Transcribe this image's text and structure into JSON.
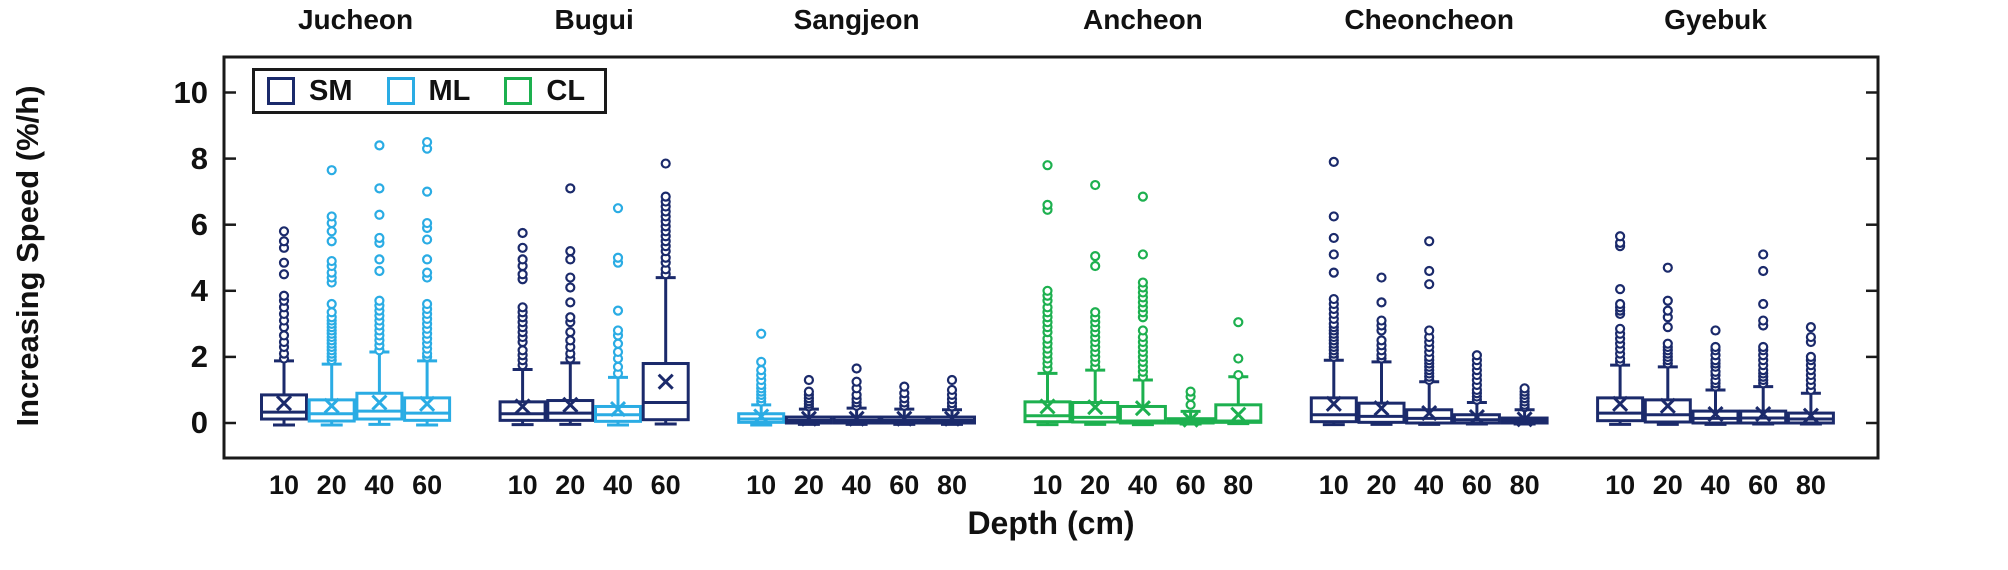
{
  "figure": {
    "ylabel": "Increasing Speed (%/h)",
    "xlabel": "Depth (cm)"
  },
  "legend": {
    "items": [
      {
        "label": "SM",
        "color": "#1b2a6b"
      },
      {
        "label": "ML",
        "color": "#2aace4"
      },
      {
        "label": "CL",
        "color": "#1db04f"
      }
    ]
  },
  "chart_data": {
    "type": "box",
    "ylabel": "Increasing Speed (%/h)",
    "xlabel": "Depth (cm)",
    "ylim": [
      -1,
      11
    ],
    "yticks": [
      0,
      2,
      4,
      6,
      8,
      10
    ],
    "grid": false,
    "legend_position": "top-left-inside",
    "mean_marker": "x",
    "outlier_marker": "open-circle",
    "soil_class_colors": {
      "SM": "#1b2a6b",
      "ML": "#2aace4",
      "CL": "#1db04f"
    },
    "groups": [
      {
        "name": "Jucheon",
        "boxes": [
          {
            "depth": "10",
            "class": "SM",
            "whisker_low": -0.06,
            "q1": 0.12,
            "median": 0.33,
            "q3": 0.85,
            "whisker_high": 1.88,
            "mean": 0.6,
            "outliers": [
              1.95,
              2.1,
              2.3,
              2.45,
              2.65,
              2.9,
              3.1,
              3.3,
              3.5,
              3.7,
              3.85,
              4.5,
              4.85,
              5.3,
              5.5,
              5.8
            ]
          },
          {
            "depth": "20",
            "class": "ML",
            "whisker_low": -0.06,
            "q1": 0.06,
            "median": 0.28,
            "q3": 0.7,
            "whisker_high": 1.78,
            "mean": 0.52,
            "outliers": [
              1.9,
              2.0,
              2.1,
              2.2,
              2.3,
              2.4,
              2.5,
              2.6,
              2.7,
              2.8,
              2.9,
              3.0,
              3.1,
              3.2,
              3.35,
              3.6,
              4.25,
              4.4,
              4.55,
              4.75,
              4.9,
              5.5,
              5.8,
              6.05,
              6.25,
              7.65
            ]
          },
          {
            "depth": "40",
            "class": "ML",
            "whisker_low": -0.04,
            "q1": 0.12,
            "median": 0.36,
            "q3": 0.9,
            "whisker_high": 2.15,
            "mean": 0.62,
            "outliers": [
              2.2,
              2.35,
              2.5,
              2.65,
              2.8,
              2.95,
              3.1,
              3.25,
              3.4,
              3.55,
              3.7,
              4.6,
              4.95,
              5.45,
              5.6,
              6.3,
              7.1,
              8.4
            ]
          },
          {
            "depth": "60",
            "class": "ML",
            "whisker_low": -0.06,
            "q1": 0.08,
            "median": 0.3,
            "q3": 0.76,
            "whisker_high": 1.88,
            "mean": 0.58,
            "outliers": [
              2.0,
              2.1,
              2.25,
              2.4,
              2.55,
              2.7,
              2.85,
              3.0,
              3.15,
              3.3,
              3.45,
              3.6,
              4.4,
              4.55,
              4.95,
              5.55,
              5.9,
              6.05,
              7.0,
              8.3,
              8.5
            ]
          }
        ]
      },
      {
        "name": "Bugui",
        "boxes": [
          {
            "depth": "10",
            "class": "SM",
            "whisker_low": -0.05,
            "q1": 0.08,
            "median": 0.28,
            "q3": 0.64,
            "whisker_high": 1.62,
            "mean": 0.5,
            "outliers": [
              1.75,
              1.9,
              2.05,
              2.2,
              2.45,
              2.6,
              2.75,
              2.9,
              3.05,
              3.2,
              3.35,
              3.5,
              4.35,
              4.5,
              4.75,
              4.95,
              5.3,
              5.75
            ]
          },
          {
            "depth": "20",
            "class": "SM",
            "whisker_low": -0.04,
            "q1": 0.08,
            "median": 0.3,
            "q3": 0.68,
            "whisker_high": 1.82,
            "mean": 0.55,
            "outliers": [
              1.95,
              2.1,
              2.3,
              2.5,
              2.75,
              3.05,
              3.2,
              3.65,
              4.1,
              4.4,
              4.95,
              5.2,
              7.1
            ]
          },
          {
            "depth": "40",
            "class": "ML",
            "whisker_low": -0.06,
            "q1": 0.05,
            "median": 0.25,
            "q3": 0.5,
            "whisker_high": 1.38,
            "mean": 0.42,
            "outliers": [
              1.5,
              1.7,
              1.95,
              2.15,
              2.4,
              2.65,
              2.8,
              3.4,
              4.85,
              5.0,
              6.5
            ]
          },
          {
            "depth": "60",
            "class": "SM",
            "whisker_low": -0.03,
            "q1": 0.1,
            "median": 0.62,
            "q3": 1.8,
            "whisker_high": 4.4,
            "mean": 1.25,
            "outliers": [
              4.5,
              4.65,
              4.85,
              5.0,
              5.2,
              5.35,
              5.5,
              5.65,
              5.8,
              5.95,
              6.1,
              6.25,
              6.4,
              6.55,
              6.7,
              6.85,
              7.85
            ]
          }
        ]
      },
      {
        "name": "Sangjeon",
        "boxes": [
          {
            "depth": "10",
            "class": "ML",
            "whisker_low": -0.06,
            "q1": 0.02,
            "median": 0.12,
            "q3": 0.28,
            "whisker_high": 0.55,
            "mean": 0.2,
            "outliers": [
              0.65,
              0.75,
              0.85,
              0.95,
              1.05,
              1.15,
              1.3,
              1.45,
              1.6,
              1.85,
              2.7
            ]
          },
          {
            "depth": "20",
            "class": "SM",
            "whisker_low": -0.04,
            "q1": 0.0,
            "median": 0.08,
            "q3": 0.18,
            "whisker_high": 0.42,
            "mean": 0.13,
            "outliers": [
              0.5,
              0.58,
              0.66,
              0.75,
              0.85,
              0.95,
              1.3
            ]
          },
          {
            "depth": "40",
            "class": "SM",
            "whisker_low": -0.04,
            "q1": 0.0,
            "median": 0.08,
            "q3": 0.18,
            "whisker_high": 0.45,
            "mean": 0.13,
            "outliers": [
              0.52,
              0.62,
              0.72,
              0.85,
              1.05,
              1.25,
              1.65
            ]
          },
          {
            "depth": "60",
            "class": "SM",
            "whisker_low": -0.04,
            "q1": 0.0,
            "median": 0.08,
            "q3": 0.18,
            "whisker_high": 0.42,
            "mean": 0.13,
            "outliers": [
              0.52,
              0.62,
              0.75,
              0.9,
              1.1
            ]
          },
          {
            "depth": "80",
            "class": "SM",
            "whisker_low": -0.04,
            "q1": 0.0,
            "median": 0.08,
            "q3": 0.18,
            "whisker_high": 0.4,
            "mean": 0.13,
            "outliers": [
              0.5,
              0.6,
              0.72,
              0.85,
              1.0,
              1.3
            ]
          }
        ]
      },
      {
        "name": "Ancheon",
        "boxes": [
          {
            "depth": "10",
            "class": "CL",
            "whisker_low": -0.05,
            "q1": 0.04,
            "median": 0.22,
            "q3": 0.64,
            "whisker_high": 1.5,
            "mean": 0.5,
            "outliers": [
              1.65,
              1.8,
              1.95,
              2.1,
              2.25,
              2.4,
              2.55,
              2.75,
              2.9,
              3.05,
              3.2,
              3.35,
              3.5,
              3.7,
              3.85,
              4.0,
              6.45,
              6.6,
              7.8
            ]
          },
          {
            "depth": "20",
            "class": "CL",
            "whisker_low": -0.04,
            "q1": 0.03,
            "median": 0.17,
            "q3": 0.62,
            "whisker_high": 1.6,
            "mean": 0.48,
            "outliers": [
              1.7,
              1.85,
              2.0,
              2.15,
              2.3,
              2.45,
              2.6,
              2.75,
              2.9,
              3.05,
              3.2,
              3.35,
              4.75,
              5.05,
              7.2
            ]
          },
          {
            "depth": "40",
            "class": "CL",
            "whisker_low": -0.05,
            "q1": 0.0,
            "median": 0.06,
            "q3": 0.5,
            "whisker_high": 1.3,
            "mean": 0.45,
            "outliers": [
              1.4,
              1.55,
              1.7,
              1.85,
              2.0,
              2.15,
              2.3,
              2.45,
              2.6,
              2.8,
              3.2,
              3.35,
              3.5,
              3.65,
              3.8,
              3.95,
              4.1,
              4.25,
              5.1,
              6.85
            ]
          },
          {
            "depth": "60",
            "class": "CL",
            "whisker_low": -0.03,
            "q1": 0.0,
            "median": 0.05,
            "q3": 0.13,
            "whisker_high": 0.35,
            "mean": 0.1,
            "outliers": [
              0.55,
              0.8,
              0.95
            ]
          },
          {
            "depth": "80",
            "class": "CL",
            "whisker_low": -0.02,
            "q1": 0.02,
            "median": 0.06,
            "q3": 0.55,
            "whisker_high": 1.4,
            "mean": 0.25,
            "outliers": [
              1.45,
              1.95,
              3.05
            ]
          }
        ]
      },
      {
        "name": "Cheoncheon",
        "boxes": [
          {
            "depth": "10",
            "class": "SM",
            "whisker_low": -0.05,
            "q1": 0.04,
            "median": 0.25,
            "q3": 0.76,
            "whisker_high": 1.9,
            "mean": 0.58,
            "outliers": [
              2.0,
              2.1,
              2.2,
              2.3,
              2.4,
              2.5,
              2.6,
              2.7,
              2.8,
              2.9,
              3.0,
              3.15,
              3.3,
              3.45,
              3.6,
              3.75,
              4.55,
              5.1,
              5.6,
              6.25,
              7.9
            ]
          },
          {
            "depth": "20",
            "class": "SM",
            "whisker_low": -0.04,
            "q1": 0.02,
            "median": 0.2,
            "q3": 0.6,
            "whisker_high": 1.85,
            "mean": 0.45,
            "outliers": [
              1.95,
              2.05,
              2.2,
              2.35,
              2.5,
              2.8,
              2.95,
              3.1,
              3.65,
              4.4
            ]
          },
          {
            "depth": "40",
            "class": "SM",
            "whisker_low": -0.04,
            "q1": 0.0,
            "median": 0.14,
            "q3": 0.4,
            "whisker_high": 1.25,
            "mean": 0.3,
            "outliers": [
              1.3,
              1.4,
              1.5,
              1.6,
              1.7,
              1.8,
              1.9,
              2.0,
              2.15,
              2.3,
              2.45,
              2.6,
              2.8,
              4.2,
              4.6,
              5.5
            ]
          },
          {
            "depth": "60",
            "class": "SM",
            "whisker_low": -0.03,
            "q1": 0.0,
            "median": 0.1,
            "q3": 0.25,
            "whisker_high": 0.62,
            "mean": 0.18,
            "outliers": [
              0.7,
              0.8,
              0.9,
              1.0,
              1.15,
              1.3,
              1.45,
              1.6,
              1.75,
              1.9,
              2.05
            ]
          },
          {
            "depth": "80",
            "class": "SM",
            "whisker_low": -0.03,
            "q1": 0.0,
            "median": 0.06,
            "q3": 0.15,
            "whisker_high": 0.4,
            "mean": 0.11,
            "outliers": [
              0.48,
              0.55,
              0.65,
              0.75,
              0.85,
              0.95,
              1.05
            ]
          }
        ]
      },
      {
        "name": "Gyebuk",
        "boxes": [
          {
            "depth": "10",
            "class": "SM",
            "whisker_low": -0.04,
            "q1": 0.07,
            "median": 0.3,
            "q3": 0.76,
            "whisker_high": 1.75,
            "mean": 0.58,
            "outliers": [
              1.85,
              1.95,
              2.1,
              2.25,
              2.4,
              2.55,
              2.7,
              2.85,
              3.3,
              3.4,
              3.5,
              3.6,
              4.05,
              5.35,
              5.45,
              5.65
            ]
          },
          {
            "depth": "20",
            "class": "SM",
            "whisker_low": -0.04,
            "q1": 0.03,
            "median": 0.25,
            "q3": 0.7,
            "whisker_high": 1.7,
            "mean": 0.52,
            "outliers": [
              1.8,
              1.9,
              2.0,
              2.1,
              2.2,
              2.3,
              2.4,
              2.9,
              3.2,
              3.4,
              3.7,
              4.7
            ]
          },
          {
            "depth": "40",
            "class": "SM",
            "whisker_low": -0.04,
            "q1": 0.0,
            "median": 0.14,
            "q3": 0.36,
            "whisker_high": 1.0,
            "mean": 0.27,
            "outliers": [
              1.1,
              1.2,
              1.3,
              1.45,
              1.55,
              1.7,
              1.8,
              1.9,
              2.05,
              2.2,
              2.3,
              2.8
            ]
          },
          {
            "depth": "60",
            "class": "SM",
            "whisker_low": -0.03,
            "q1": 0.0,
            "median": 0.15,
            "q3": 0.36,
            "whisker_high": 1.1,
            "mean": 0.27,
            "outliers": [
              1.2,
              1.3,
              1.4,
              1.5,
              1.6,
              1.75,
              1.9,
              2.05,
              2.2,
              2.3,
              2.95,
              3.1,
              3.6,
              4.6,
              5.1
            ]
          },
          {
            "depth": "80",
            "class": "SM",
            "whisker_low": -0.03,
            "q1": 0.0,
            "median": 0.12,
            "q3": 0.3,
            "whisker_high": 0.9,
            "mean": 0.22,
            "outliers": [
              1.0,
              1.15,
              1.3,
              1.45,
              1.6,
              1.75,
              1.9,
              2.0,
              2.45,
              2.6,
              2.9
            ]
          }
        ]
      }
    ]
  }
}
